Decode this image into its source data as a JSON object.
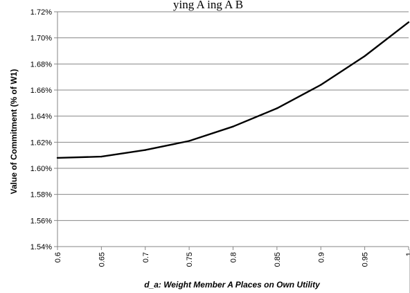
{
  "header_fragment": "ying  A      ing   A     B",
  "chart_data": {
    "type": "line",
    "title": "",
    "xlabel": "d_a: Weight Member A Places on Own Utility",
    "ylabel": "Value of Commitment (% of W1)",
    "x": [
      0.6,
      0.65,
      0.7,
      0.75,
      0.8,
      0.85,
      0.9,
      0.95,
      1
    ],
    "x_tick_labels": [
      "0.6",
      "0.65",
      "0.7",
      "0.75",
      "0.8",
      "0.85",
      "0.9",
      "0.95",
      "1"
    ],
    "xlim": [
      0.6,
      1
    ],
    "ylim": [
      1.54,
      1.72
    ],
    "y_ticks": [
      1.54,
      1.56,
      1.58,
      1.6,
      1.62,
      1.64,
      1.66,
      1.68,
      1.7,
      1.72
    ],
    "y_tick_labels": [
      "1.54%",
      "1.56%",
      "1.58%",
      "1.60%",
      "1.62%",
      "1.64%",
      "1.66%",
      "1.68%",
      "1.70%",
      "1.72%"
    ],
    "grid": true,
    "legend": "none",
    "series": [
      {
        "values": [
          1.608,
          1.609,
          1.614,
          1.621,
          1.632,
          1.646,
          1.664,
          1.686,
          1.712
        ],
        "color": "#000000"
      }
    ]
  }
}
